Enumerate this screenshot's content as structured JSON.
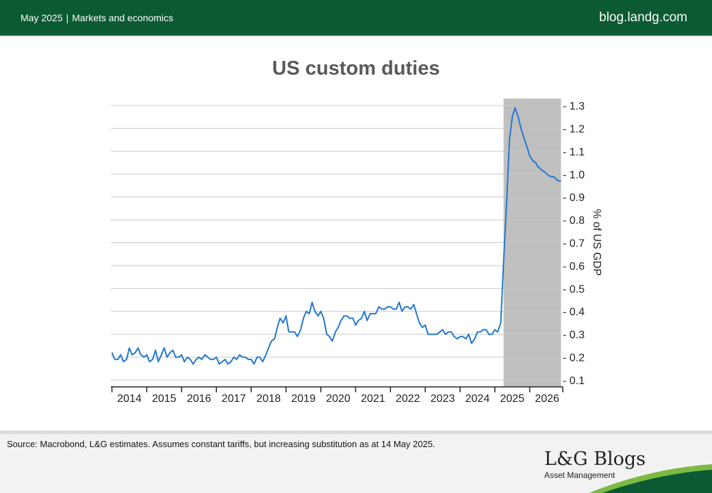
{
  "header": {
    "date": "May 2025",
    "separator": "|",
    "section": "Markets and economics",
    "site": "blog.landg.com"
  },
  "chart_title": "US custom duties",
  "chart_data": {
    "type": "line",
    "title": "US custom duties",
    "ylabel": "% of US GDP",
    "xlabel": "",
    "ylim": [
      0.07,
      1.33
    ],
    "y_ticks": [
      0.1,
      0.2,
      0.3,
      0.4,
      0.5,
      0.6,
      0.7,
      0.8,
      0.9,
      1.0,
      1.1,
      1.2,
      1.3
    ],
    "y_tick_labels": [
      "- 0.1",
      "- 0.2",
      "- 0.3",
      "- 0.4",
      "- 0.5",
      "- 0.6",
      "- 0.7",
      "- 0.8",
      "- 0.9",
      "- 1.0",
      "- 1.1",
      "- 1.2",
      "- 1.3"
    ],
    "x_tick_labels": [
      "2014",
      "2015",
      "2016",
      "2017",
      "2018",
      "2019",
      "2020",
      "2021",
      "2022",
      "2023",
      "2024",
      "2025",
      "2026"
    ],
    "xlim": [
      2013.97,
      2026.95
    ],
    "grid": true,
    "y_axis_side": "right",
    "line_color": "#1f77d0",
    "shaded_region": {
      "from": 2025.25,
      "to": 2026.9,
      "color": "#bfbfbf"
    },
    "series": [
      {
        "x": [
          2014.0,
          2014.08,
          2014.17,
          2014.25,
          2014.33,
          2014.42,
          2014.5,
          2014.58,
          2014.67,
          2014.75,
          2014.83,
          2014.92,
          2015.0,
          2015.08,
          2015.17,
          2015.25,
          2015.33,
          2015.42,
          2015.5,
          2015.58,
          2015.67,
          2015.75,
          2015.83,
          2015.92,
          2016.0,
          2016.08,
          2016.17,
          2016.25,
          2016.33,
          2016.42,
          2016.5,
          2016.58,
          2016.67,
          2016.75,
          2016.83,
          2016.92,
          2017.0,
          2017.08,
          2017.17,
          2017.25,
          2017.33,
          2017.42,
          2017.5,
          2017.58,
          2017.67,
          2017.75,
          2017.83,
          2017.92,
          2018.0,
          2018.08,
          2018.17,
          2018.25,
          2018.33,
          2018.42,
          2018.5,
          2018.58,
          2018.67,
          2018.75,
          2018.83,
          2018.92,
          2019.0,
          2019.08,
          2019.17,
          2019.25,
          2019.33,
          2019.42,
          2019.5,
          2019.58,
          2019.67,
          2019.75,
          2019.83,
          2019.92,
          2020.0,
          2020.08,
          2020.17,
          2020.25,
          2020.33,
          2020.42,
          2020.5,
          2020.58,
          2020.67,
          2020.75,
          2020.83,
          2020.92,
          2021.0,
          2021.08,
          2021.17,
          2021.25,
          2021.33,
          2021.42,
          2021.5,
          2021.58,
          2021.67,
          2021.75,
          2021.83,
          2021.92,
          2022.0,
          2022.08,
          2022.17,
          2022.25,
          2022.33,
          2022.42,
          2022.5,
          2022.58,
          2022.67,
          2022.75,
          2022.83,
          2022.92,
          2023.0,
          2023.08,
          2023.17,
          2023.25,
          2023.33,
          2023.42,
          2023.5,
          2023.58,
          2023.67,
          2023.75,
          2023.83,
          2023.92,
          2024.0,
          2024.08,
          2024.17,
          2024.25,
          2024.33,
          2024.42,
          2024.5,
          2024.58,
          2024.67,
          2024.75,
          2024.83,
          2024.92,
          2025.0,
          2025.08,
          2025.17,
          2025.25,
          2025.33,
          2025.42,
          2025.5,
          2025.58,
          2025.67,
          2025.75,
          2025.83,
          2025.92,
          2026.0,
          2026.08,
          2026.17,
          2026.25,
          2026.33,
          2026.42,
          2026.5,
          2026.58,
          2026.67,
          2026.75,
          2026.83,
          2026.9
        ],
        "y": [
          0.22,
          0.19,
          0.19,
          0.21,
          0.18,
          0.19,
          0.24,
          0.21,
          0.22,
          0.24,
          0.21,
          0.2,
          0.21,
          0.18,
          0.19,
          0.23,
          0.18,
          0.21,
          0.24,
          0.2,
          0.22,
          0.23,
          0.2,
          0.2,
          0.21,
          0.18,
          0.2,
          0.19,
          0.17,
          0.19,
          0.2,
          0.19,
          0.21,
          0.2,
          0.19,
          0.19,
          0.2,
          0.17,
          0.18,
          0.19,
          0.17,
          0.18,
          0.2,
          0.19,
          0.21,
          0.2,
          0.2,
          0.19,
          0.19,
          0.17,
          0.2,
          0.2,
          0.18,
          0.21,
          0.24,
          0.27,
          0.28,
          0.33,
          0.37,
          0.35,
          0.38,
          0.31,
          0.31,
          0.31,
          0.29,
          0.32,
          0.37,
          0.4,
          0.39,
          0.44,
          0.4,
          0.38,
          0.4,
          0.37,
          0.3,
          0.29,
          0.27,
          0.31,
          0.33,
          0.36,
          0.38,
          0.38,
          0.37,
          0.37,
          0.34,
          0.36,
          0.37,
          0.4,
          0.36,
          0.39,
          0.39,
          0.39,
          0.42,
          0.41,
          0.41,
          0.42,
          0.42,
          0.41,
          0.41,
          0.44,
          0.4,
          0.42,
          0.42,
          0.41,
          0.43,
          0.39,
          0.35,
          0.33,
          0.34,
          0.3,
          0.3,
          0.3,
          0.3,
          0.31,
          0.32,
          0.3,
          0.31,
          0.31,
          0.29,
          0.28,
          0.29,
          0.29,
          0.28,
          0.3,
          0.26,
          0.28,
          0.31,
          0.31,
          0.32,
          0.32,
          0.3,
          0.3,
          0.32,
          0.31,
          0.35,
          0.62,
          0.85,
          1.15,
          1.25,
          1.29,
          1.25,
          1.2,
          1.16,
          1.12,
          1.08,
          1.06,
          1.05,
          1.03,
          1.02,
          1.01,
          1.0,
          0.99,
          0.99,
          0.98,
          0.97,
          0.97
        ]
      }
    ]
  },
  "footer": {
    "source": "Source: Macrobond, L&G estimates.  Assumes constant tariffs, but increasing  substitution as at 14 May 2025.",
    "logo_main": "L&G Blogs",
    "logo_sub": "Asset Management",
    "swoosh_colors": [
      "#0b5a33",
      "#7cba43"
    ]
  }
}
